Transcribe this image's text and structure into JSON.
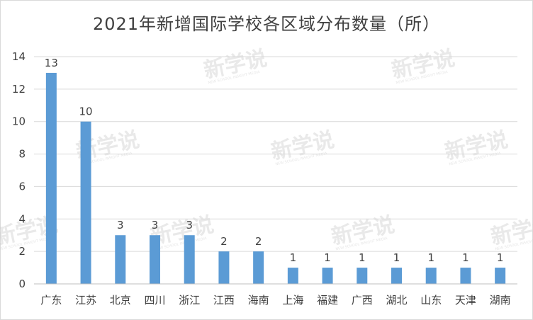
{
  "chart_data": {
    "type": "bar",
    "title": "2021年新增国际学校各区域分布数量（所）",
    "categories": [
      "广东",
      "江苏",
      "北京",
      "四川",
      "浙江",
      "江西",
      "海南",
      "上海",
      "福建",
      "广西",
      "湖北",
      "山东",
      "天津",
      "湖南"
    ],
    "values": [
      13,
      10,
      3,
      3,
      3,
      2,
      2,
      1,
      1,
      1,
      1,
      1,
      1,
      1
    ],
    "ylim": [
      0,
      14
    ],
    "yticks": [
      0,
      2,
      4,
      6,
      8,
      10,
      12,
      14
    ],
    "grid": true,
    "legend": "none",
    "bar_color": "#5b9bd5"
  },
  "watermark": {
    "text": "新学说",
    "sub": "NEW SCHOOL INSIGHT MEDIA"
  }
}
